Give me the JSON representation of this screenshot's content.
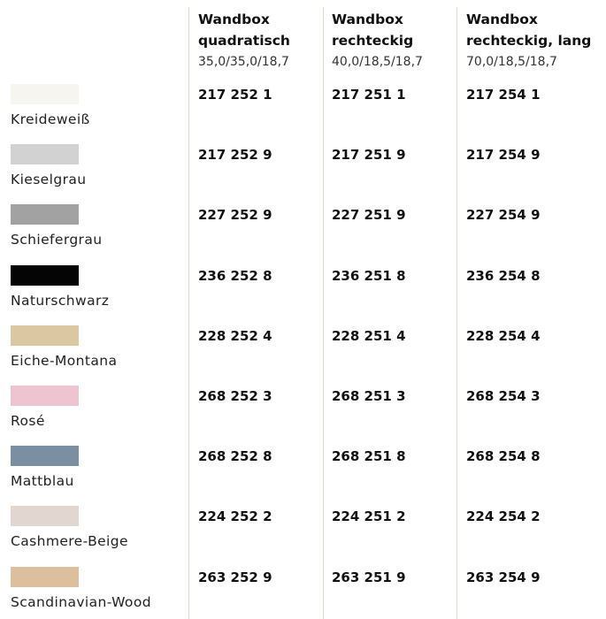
{
  "columns": [
    {
      "title": [
        "Wandbox",
        "quadratisch"
      ],
      "dims": "35,0/35,0/18,7"
    },
    {
      "title": [
        "Wandbox",
        "rechteckig"
      ],
      "dims": "40,0/18,5/18,7"
    },
    {
      "title": [
        "Wandbox",
        "rechteckig, lang"
      ],
      "dims": "70,0/18,5/18,7"
    }
  ],
  "rows": [
    {
      "name": "Kreideweiß",
      "swatch": "#f7f5ef",
      "codes": [
        "217 252 1",
        "217 251 1",
        "217 254 1"
      ]
    },
    {
      "name": "Kieselgrau",
      "swatch": "#d2d2d2",
      "codes": [
        "217 252 9",
        "217 251 9",
        "217 254 9"
      ]
    },
    {
      "name": "Schiefergrau",
      "swatch": "#a2a2a2",
      "codes": [
        "227 252 9",
        "227 251 9",
        "227 254 9"
      ]
    },
    {
      "name": "Naturschwarz",
      "swatch": "#050505",
      "codes": [
        "236 252 8",
        "236 251 8",
        "236 254 8"
      ]
    },
    {
      "name": "Eiche-Montana",
      "swatch": "#dcc7a3",
      "codes": [
        "228 252 4",
        "228 251 4",
        "228 254 4"
      ]
    },
    {
      "name": "Rosé",
      "swatch": "#eec4d0",
      "codes": [
        "268 252 3",
        "268 251 3",
        "268 254 3"
      ]
    },
    {
      "name": "Mattblau",
      "swatch": "#7a8fa2",
      "codes": [
        "268 252 8",
        "268 251 8",
        "268 254 8"
      ]
    },
    {
      "name": "Cashmere-Beige",
      "swatch": "#e1d7d0",
      "codes": [
        "224 252 2",
        "224 251 2",
        "224 254 2"
      ]
    },
    {
      "name": "Scandinavian-Wood",
      "swatch": "#dcbf9c",
      "codes": [
        "263 252 9",
        "263 251 9",
        "263 254 9"
      ]
    }
  ]
}
